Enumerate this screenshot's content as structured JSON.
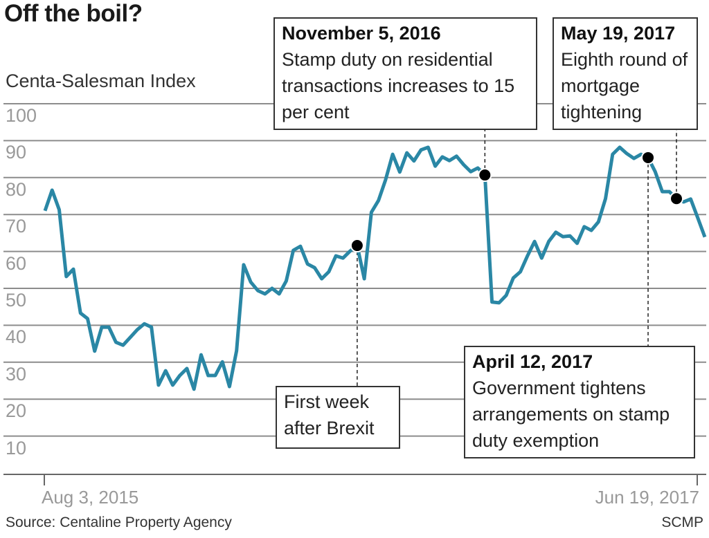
{
  "title": "Off the boil?",
  "source": "Source: Centaline Property Agency",
  "credit": "SCMP",
  "colors": {
    "line": "#2a87a5",
    "grid": "#8c8c8c",
    "marker": "#000000",
    "tick_text": "#999999"
  },
  "chart_data": {
    "type": "line",
    "title": "Off the boil?",
    "ylabel": "Centa-Salesman Index",
    "xlabel": "",
    "ylim": [
      0,
      100
    ],
    "yticks": [
      "100",
      "90",
      "80",
      "70",
      "60",
      "50",
      "40",
      "30",
      "20",
      "10"
    ],
    "xticks": [
      "Aug 3, 2015",
      "Jun 19, 2017"
    ],
    "grid": true,
    "series": [
      {
        "values": [
          71,
          76.6,
          71.3,
          53.2,
          55.2,
          43.3,
          41.8,
          33,
          39.5,
          39.5,
          35.4,
          34.6,
          36.7,
          38.8,
          40.4,
          39.5,
          23.8,
          27.7,
          23.8,
          26.4,
          28.3,
          22.7,
          32,
          26.4,
          26.4,
          30.1,
          23.4,
          33.1,
          56.4,
          51.7,
          49.4,
          48.5,
          50,
          48.5,
          52,
          60.3,
          61.4,
          56.6,
          55.6,
          52.6,
          54.5,
          58.8,
          58.2,
          60.1,
          61.6,
          52.6,
          70.6,
          73.8,
          79.4,
          86.3,
          81.5,
          86.7,
          84.5,
          87.5,
          88.2,
          83.1,
          85.6,
          84.6,
          85.8,
          83.5,
          81.6,
          82.6,
          80.7,
          46.3,
          46.1,
          48.1,
          52.8,
          54.5,
          58.8,
          62.7,
          58.2,
          62.7,
          65.2,
          64,
          64.2,
          62.2,
          66.7,
          65.7,
          68,
          74.3,
          86.3,
          88.2,
          86.5,
          85.2,
          86.3,
          85.4,
          81.6,
          76.2,
          76.2,
          74.3,
          73.4,
          74.2,
          69.1,
          63.9
        ]
      }
    ],
    "annotations": [
      {
        "date": "November 5, 2016",
        "text": "Stamp duty on residential transactions increases to 15 per cent",
        "value": 80.7
      },
      {
        "date": "May 19, 2017",
        "text": "Eighth round of mortgage tightening",
        "value": 74.3
      },
      {
        "date": "",
        "text": "First week after Brexit",
        "value": 61.6
      },
      {
        "date": "April 12, 2017",
        "text": "Government tightens arrangements on stamp duty exemption",
        "value": 85.4
      }
    ]
  }
}
